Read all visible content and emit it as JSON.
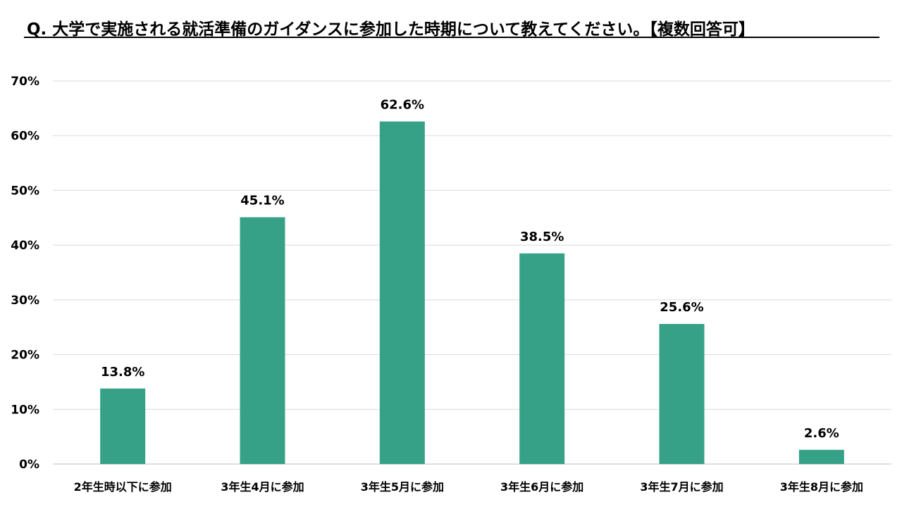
{
  "colors": {
    "bar": "#37a188",
    "grid": "#d9d9d9",
    "text": "#000000"
  },
  "chart_data": {
    "type": "bar",
    "title": "Q. 大学で実施される就活準備のガイダンスに参加した時期について教えてください。【複数回答可】",
    "xlabel": "",
    "ylabel": "",
    "ylim": [
      0,
      70
    ],
    "yticks": [
      0,
      10,
      20,
      30,
      40,
      50,
      60,
      70
    ],
    "ytick_labels": [
      "0%",
      "10%",
      "20%",
      "30%",
      "40%",
      "50%",
      "60%",
      "70%"
    ],
    "grid": true,
    "legend": "none",
    "categories": [
      "2年生時以下に参加",
      "3年生4月に参加",
      "3年生5月に参加",
      "3年生6月に参加",
      "3年生7月に参加",
      "3年生8月に参加"
    ],
    "values": [
      13.8,
      45.1,
      62.6,
      38.5,
      25.6,
      2.6
    ],
    "value_labels": [
      "13.8%",
      "45.1%",
      "62.6%",
      "38.5%",
      "25.6%",
      "2.6%"
    ]
  }
}
